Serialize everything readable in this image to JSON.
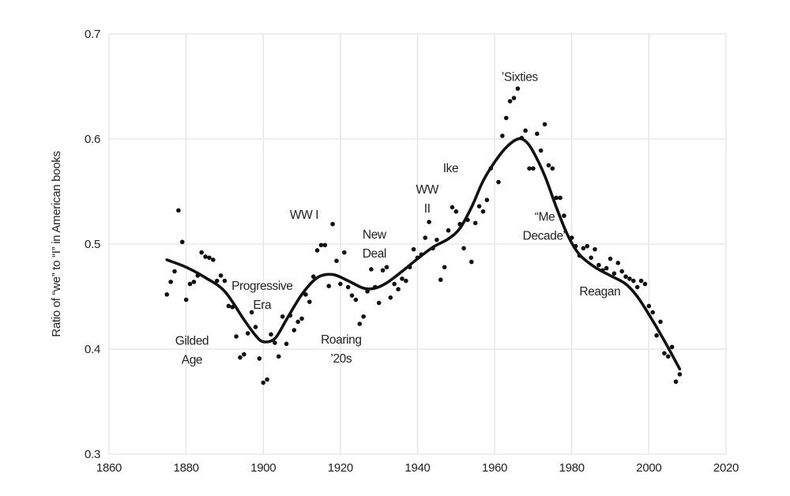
{
  "chart_data": {
    "type": "scatter",
    "title": "",
    "xlabel": "",
    "ylabel": "Ratio of “we” to “I” in American books",
    "xlim": [
      1860,
      2020
    ],
    "ylim": [
      0.3,
      0.7
    ],
    "xticks": [
      1860,
      1880,
      1900,
      1920,
      1940,
      1960,
      1980,
      2000,
      2020
    ],
    "yticks": [
      "0.3",
      "0.4",
      "0.5",
      "0.6",
      "0.7"
    ],
    "grid": true,
    "points": [
      [
        1875,
        0.452
      ],
      [
        1876,
        0.464
      ],
      [
        1877,
        0.474
      ],
      [
        1878,
        0.532
      ],
      [
        1879,
        0.502
      ],
      [
        1880,
        0.447
      ],
      [
        1881,
        0.462
      ],
      [
        1882,
        0.464
      ],
      [
        1883,
        0.47
      ],
      [
        1884,
        0.492
      ],
      [
        1885,
        0.488
      ],
      [
        1886,
        0.487
      ],
      [
        1887,
        0.485
      ],
      [
        1888,
        0.465
      ],
      [
        1889,
        0.47
      ],
      [
        1890,
        0.465
      ],
      [
        1891,
        0.441
      ],
      [
        1892,
        0.44
      ],
      [
        1893,
        0.412
      ],
      [
        1894,
        0.392
      ],
      [
        1895,
        0.395
      ],
      [
        1896,
        0.415
      ],
      [
        1897,
        0.435
      ],
      [
        1898,
        0.421
      ],
      [
        1899,
        0.391
      ],
      [
        1900,
        0.368
      ],
      [
        1901,
        0.371
      ],
      [
        1902,
        0.414
      ],
      [
        1903,
        0.406
      ],
      [
        1904,
        0.393
      ],
      [
        1905,
        0.431
      ],
      [
        1906,
        0.405
      ],
      [
        1907,
        0.432
      ],
      [
        1908,
        0.418
      ],
      [
        1909,
        0.426
      ],
      [
        1910,
        0.429
      ],
      [
        1911,
        0.452
      ],
      [
        1912,
        0.445
      ],
      [
        1913,
        0.469
      ],
      [
        1914,
        0.494
      ],
      [
        1915,
        0.499
      ],
      [
        1916,
        0.499
      ],
      [
        1917,
        0.46
      ],
      [
        1918,
        0.519
      ],
      [
        1919,
        0.484
      ],
      [
        1920,
        0.462
      ],
      [
        1921,
        0.492
      ],
      [
        1922,
        0.459
      ],
      [
        1923,
        0.451
      ],
      [
        1924,
        0.447
      ],
      [
        1925,
        0.424
      ],
      [
        1926,
        0.431
      ],
      [
        1927,
        0.455
      ],
      [
        1928,
        0.476
      ],
      [
        1929,
        0.459
      ],
      [
        1930,
        0.444
      ],
      [
        1931,
        0.475
      ],
      [
        1932,
        0.478
      ],
      [
        1933,
        0.449
      ],
      [
        1934,
        0.462
      ],
      [
        1935,
        0.457
      ],
      [
        1936,
        0.467
      ],
      [
        1937,
        0.465
      ],
      [
        1938,
        0.478
      ],
      [
        1939,
        0.495
      ],
      [
        1940,
        0.487
      ],
      [
        1941,
        0.49
      ],
      [
        1942,
        0.506
      ],
      [
        1943,
        0.521
      ],
      [
        1944,
        0.496
      ],
      [
        1945,
        0.504
      ],
      [
        1946,
        0.466
      ],
      [
        1947,
        0.478
      ],
      [
        1948,
        0.513
      ],
      [
        1949,
        0.535
      ],
      [
        1950,
        0.531
      ],
      [
        1951,
        0.519
      ],
      [
        1952,
        0.496
      ],
      [
        1953,
        0.523
      ],
      [
        1954,
        0.483
      ],
      [
        1955,
        0.52
      ],
      [
        1956,
        0.536
      ],
      [
        1957,
        0.531
      ],
      [
        1958,
        0.542
      ],
      [
        1959,
        0.572
      ],
      [
        1961,
        0.559
      ],
      [
        1962,
        0.603
      ],
      [
        1963,
        0.62
      ],
      [
        1964,
        0.636
      ],
      [
        1965,
        0.639
      ],
      [
        1966,
        0.648
      ],
      [
        1967,
        0.601
      ],
      [
        1968,
        0.608
      ],
      [
        1969,
        0.572
      ],
      [
        1970,
        0.572
      ],
      [
        1971,
        0.605
      ],
      [
        1972,
        0.589
      ],
      [
        1973,
        0.614
      ],
      [
        1974,
        0.575
      ],
      [
        1975,
        0.572
      ],
      [
        1976,
        0.544
      ],
      [
        1977,
        0.544
      ],
      [
        1978,
        0.527
      ],
      [
        1980,
        0.506
      ],
      [
        1981,
        0.498
      ],
      [
        1982,
        0.489
      ],
      [
        1983,
        0.496
      ],
      [
        1984,
        0.498
      ],
      [
        1985,
        0.487
      ],
      [
        1986,
        0.495
      ],
      [
        1987,
        0.48
      ],
      [
        1988,
        0.475
      ],
      [
        1989,
        0.477
      ],
      [
        1990,
        0.486
      ],
      [
        1991,
        0.472
      ],
      [
        1992,
        0.482
      ],
      [
        1993,
        0.474
      ],
      [
        1994,
        0.469
      ],
      [
        1995,
        0.467
      ],
      [
        1996,
        0.465
      ],
      [
        1997,
        0.459
      ],
      [
        1998,
        0.465
      ],
      [
        1999,
        0.462
      ],
      [
        2000,
        0.441
      ],
      [
        2001,
        0.435
      ],
      [
        2002,
        0.413
      ],
      [
        2003,
        0.426
      ],
      [
        2004,
        0.396
      ],
      [
        2005,
        0.393
      ],
      [
        2006,
        0.402
      ],
      [
        2007,
        0.369
      ],
      [
        2008,
        0.376
      ]
    ],
    "trend": [
      [
        1875,
        0.485
      ],
      [
        1880,
        0.478
      ],
      [
        1885,
        0.468
      ],
      [
        1890,
        0.455
      ],
      [
        1895,
        0.428
      ],
      [
        1898,
        0.413
      ],
      [
        1900,
        0.407
      ],
      [
        1903,
        0.41
      ],
      [
        1906,
        0.428
      ],
      [
        1910,
        0.452
      ],
      [
        1914,
        0.468
      ],
      [
        1918,
        0.471
      ],
      [
        1922,
        0.465
      ],
      [
        1926,
        0.458
      ],
      [
        1929,
        0.458
      ],
      [
        1932,
        0.463
      ],
      [
        1936,
        0.474
      ],
      [
        1940,
        0.486
      ],
      [
        1944,
        0.497
      ],
      [
        1948,
        0.505
      ],
      [
        1951,
        0.515
      ],
      [
        1954,
        0.535
      ],
      [
        1957,
        0.56
      ],
      [
        1960,
        0.578
      ],
      [
        1963,
        0.592
      ],
      [
        1966,
        0.6
      ],
      [
        1968,
        0.598
      ],
      [
        1970,
        0.588
      ],
      [
        1973,
        0.565
      ],
      [
        1976,
        0.535
      ],
      [
        1979,
        0.508
      ],
      [
        1982,
        0.49
      ],
      [
        1986,
        0.478
      ],
      [
        1990,
        0.47
      ],
      [
        1994,
        0.462
      ],
      [
        1997,
        0.45
      ],
      [
        2000,
        0.433
      ],
      [
        2004,
        0.408
      ],
      [
        2008,
        0.381
      ]
    ],
    "annotations": [
      {
        "lines": [
          "Gilded",
          "Age"
        ],
        "x": 1881.5,
        "y": 0.408
      },
      {
        "lines": [
          "Progressive",
          "Era"
        ],
        "x": 1899.7,
        "y": 0.46
      },
      {
        "lines": [
          "WW I"
        ],
        "x": 1910.6,
        "y": 0.528
      },
      {
        "lines": [
          "Roaring",
          "’20s"
        ],
        "x": 1920.2,
        "y": 0.409
      },
      {
        "lines": [
          "New",
          "Deal"
        ],
        "x": 1928.8,
        "y": 0.509
      },
      {
        "lines": [
          "WW",
          "II"
        ],
        "x": 1942.5,
        "y": 0.552
      },
      {
        "lines": [
          "Ike"
        ],
        "x": 1948.6,
        "y": 0.572
      },
      {
        "lines": [
          "’Sixties"
        ],
        "x": 1966.5,
        "y": 0.659
      },
      {
        "lines": [
          "“Me",
          "Decade”"
        ],
        "x": 1973.0,
        "y": 0.526
      },
      {
        "lines": [
          "Reagan"
        ],
        "x": 1987.3,
        "y": 0.455
      }
    ],
    "colors": {
      "points": "#111111",
      "trend": "#111111",
      "grid": "#e3e3e3"
    }
  }
}
